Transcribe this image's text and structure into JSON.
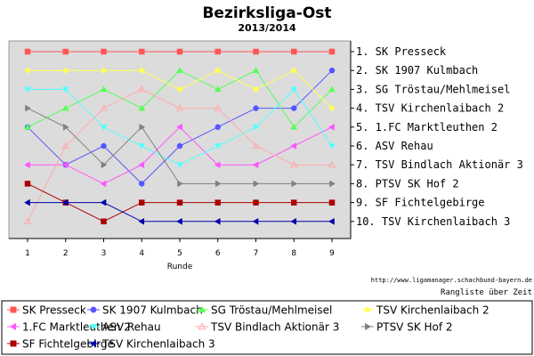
{
  "chart_data": {
    "type": "line",
    "title": "Bezirksliga-Ost",
    "subtitle": "2013/2014",
    "xlabel": "Runde",
    "ylabel": "",
    "x": [
      1,
      2,
      3,
      4,
      5,
      6,
      7,
      8,
      9
    ],
    "ylim": [
      1,
      10
    ],
    "y_inverted": true,
    "grid": false,
    "legend_position": "bottom",
    "rank_labels": [
      "1. SK Presseck",
      "2. SK 1907 Kulmbach",
      "3. SG Tröstau/Mehlmeisel",
      "4. TSV Kirchenlaibach 2",
      "5. 1.FC Marktleuthen 2",
      "6. ASV Rehau",
      "7. TSV Bindlach Aktionär 3",
      "8. PTSV SK Hof 2",
      "9. SF Fichtelgebirge",
      "10. TSV Kirchenlaibach 3"
    ],
    "series": [
      {
        "name": "SK Presseck",
        "color": "#ff5555",
        "marker": "square",
        "values": [
          1,
          1,
          1,
          1,
          1,
          1,
          1,
          1,
          1
        ]
      },
      {
        "name": "SK 1907 Kulmbach",
        "color": "#5555ff",
        "marker": "circle",
        "values": [
          5,
          7,
          6,
          8,
          6,
          5,
          4,
          4,
          2
        ]
      },
      {
        "name": "SG Tröstau/Mehlmeisel",
        "color": "#55ff55",
        "marker": "triangle-up",
        "values": [
          5,
          4,
          3,
          4,
          2,
          3,
          2,
          5,
          3
        ]
      },
      {
        "name": "TSV Kirchenlaibach 2",
        "color": "#ffff55",
        "marker": "diamond",
        "values": [
          2,
          2,
          2,
          2,
          3,
          2,
          3,
          2,
          4
        ]
      },
      {
        "name": "1.FC Marktleuthen 2",
        "color": "#ff55ff",
        "marker": "triangle-left",
        "values": [
          7,
          7,
          8,
          7,
          5,
          7,
          7,
          6,
          5
        ]
      },
      {
        "name": "ASV Rehau",
        "color": "#55ffff",
        "marker": "triangle-down",
        "values": [
          3,
          3,
          5,
          6,
          7,
          6,
          5,
          3,
          6
        ]
      },
      {
        "name": "TSV Bindlach Aktionär 3",
        "color": "#ffaaaa",
        "marker": "triangle-up-open",
        "values": [
          10,
          6,
          4,
          3,
          4,
          4,
          6,
          7,
          7
        ]
      },
      {
        "name": "PTSV SK Hof 2",
        "color": "#808080",
        "marker": "triangle-right",
        "values": [
          4,
          5,
          7,
          5,
          8,
          8,
          8,
          8,
          8
        ]
      },
      {
        "name": "SF Fichtelgebirge",
        "color": "#aa0000",
        "marker": "square",
        "values": [
          8,
          9,
          10,
          9,
          9,
          9,
          9,
          9,
          9
        ]
      },
      {
        "name": "TSV Kirchenlaibach 3",
        "color": "#0000aa",
        "marker": "triangle-left",
        "values": [
          9,
          9,
          9,
          10,
          10,
          10,
          10,
          10,
          10
        ]
      }
    ]
  },
  "footer": {
    "url": "http://www.ligamanager.schachbund-bayern.de",
    "caption": "Rangliste über Zeit"
  }
}
